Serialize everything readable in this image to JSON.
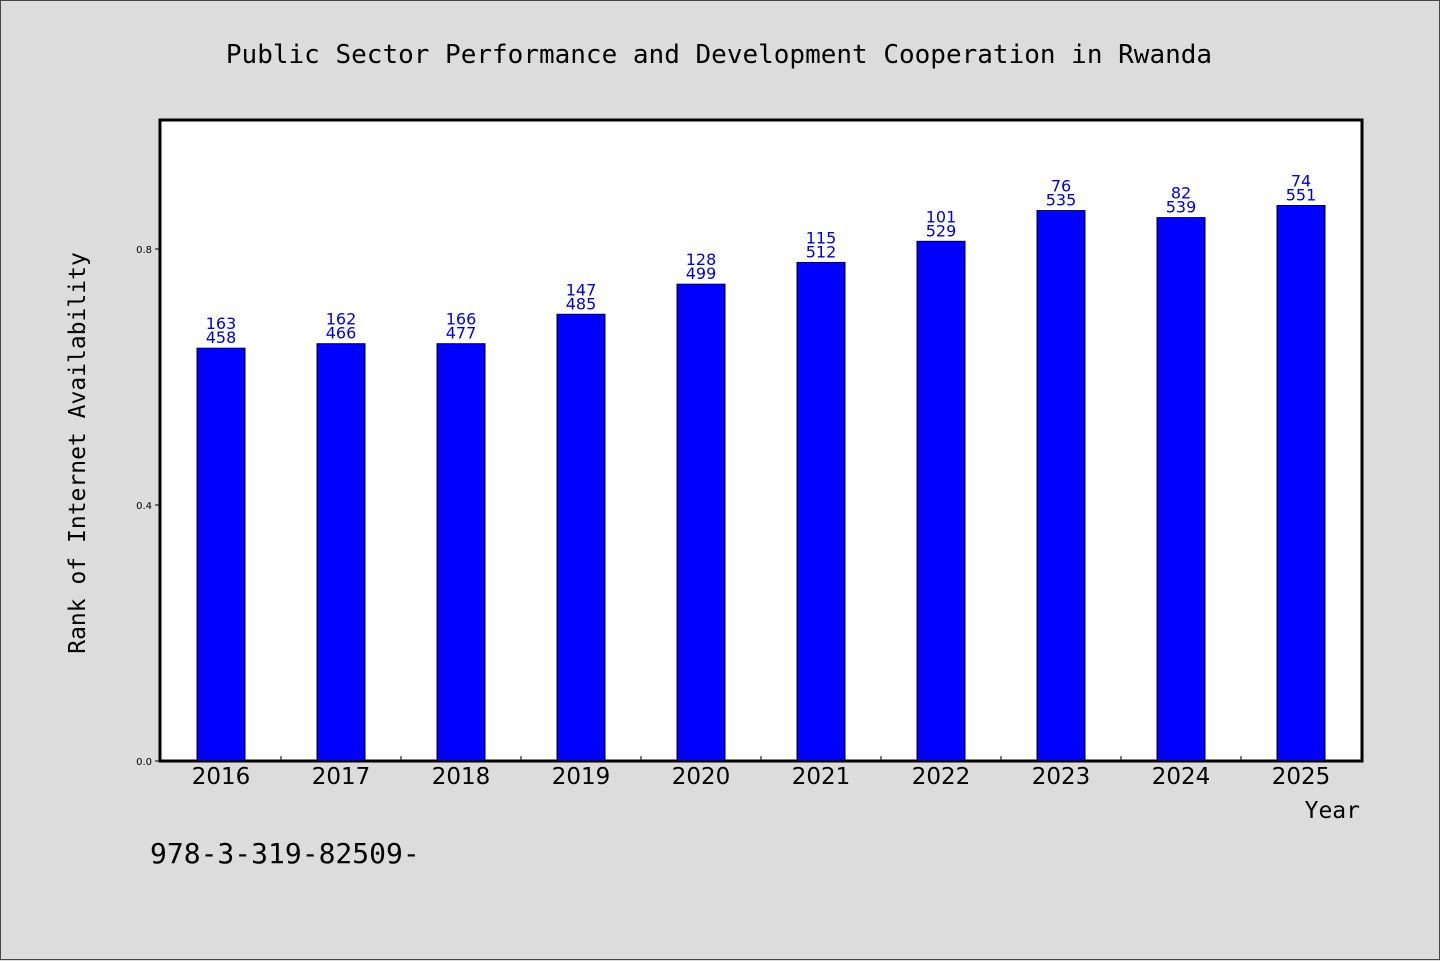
{
  "chart_data": {
    "type": "bar",
    "title": "Public Sector Performance and Development Cooperation in Rwanda",
    "xlabel": "Year",
    "ylabel": "Rank of Internet Availability",
    "categories": [
      "2016",
      "2017",
      "2018",
      "2019",
      "2020",
      "2021",
      "2022",
      "2023",
      "2024",
      "2025"
    ],
    "values": [
      0.645,
      0.652,
      0.652,
      0.698,
      0.745,
      0.779,
      0.812,
      0.86,
      0.849,
      0.868
    ],
    "labels_top": [
      "163",
      "162",
      "166",
      "147",
      "128",
      "115",
      "101",
      "76",
      "82",
      "74"
    ],
    "labels_bottom": [
      "458",
      "466",
      "477",
      "485",
      "499",
      "512",
      "529",
      "535",
      "539",
      "551"
    ],
    "ylim": [
      0.0,
      1.0
    ],
    "yticks": [
      0.0,
      0.4,
      0.8
    ],
    "ytick_labels": [
      "0.0",
      "0.4",
      "0.8"
    ],
    "grid": false,
    "bar_color": "#0000ff",
    "label_color": "#0000cc"
  },
  "footnote": "978-3-319-82509-"
}
